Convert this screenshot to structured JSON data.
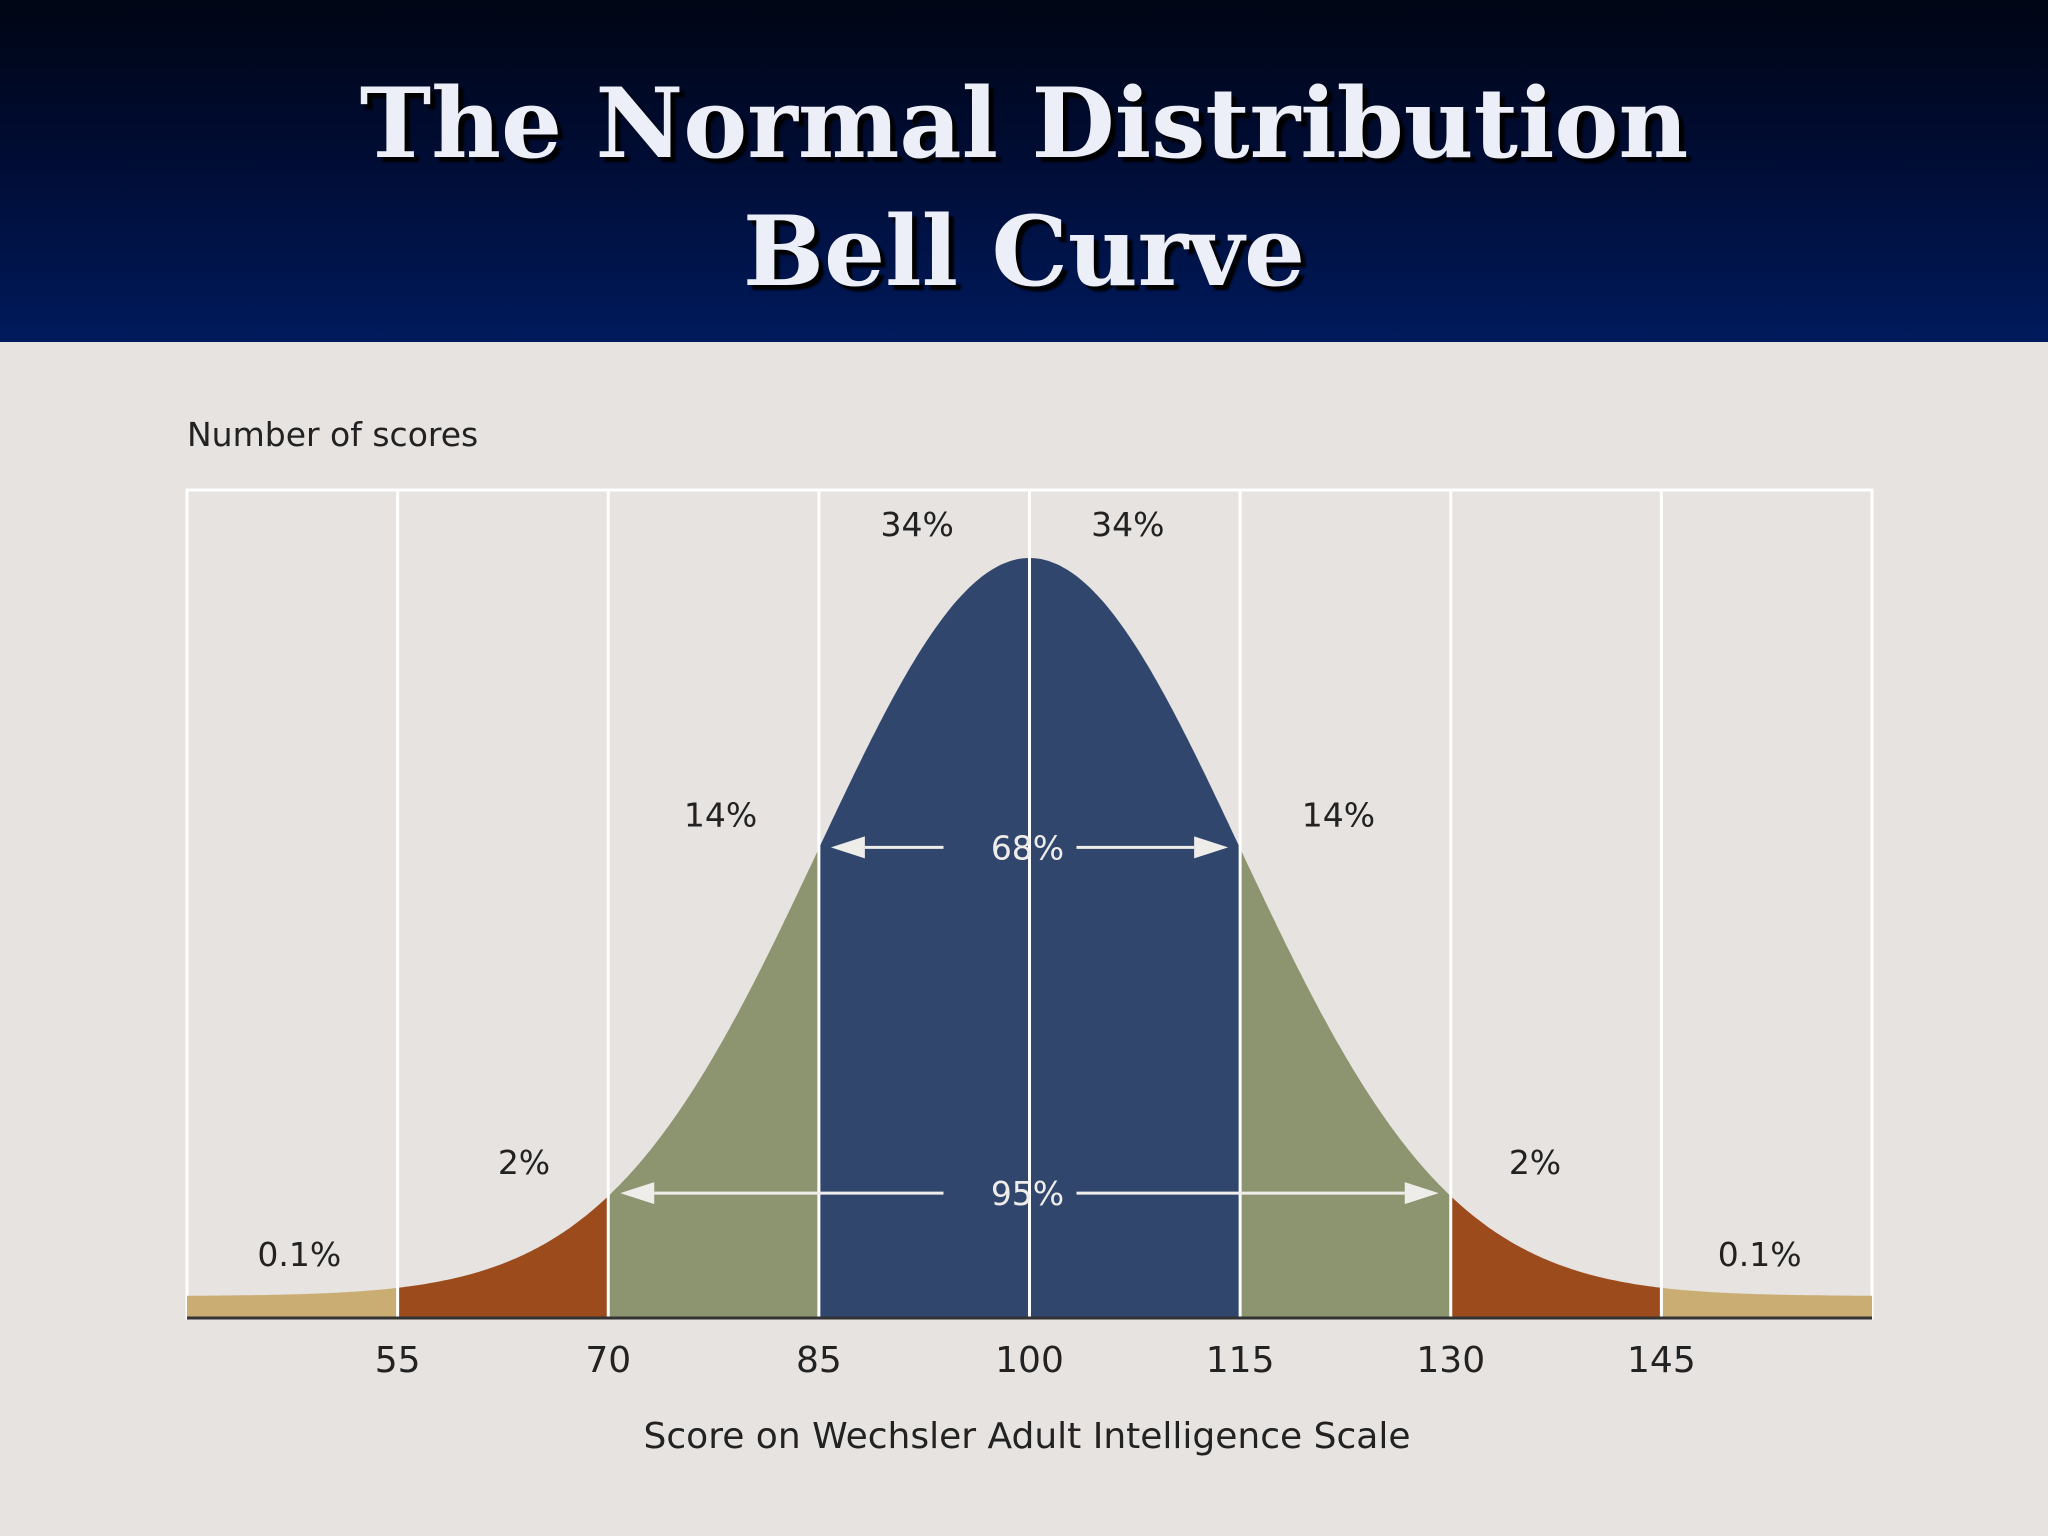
{
  "slide": {
    "title_line1": "The Normal Distribution",
    "title_line2": "Bell Curve"
  },
  "colors": {
    "header_dark": "#000514",
    "header_light": "#001a5c",
    "background": "#e7e3e0",
    "band_within_1sd": "#31466d",
    "band_1_2sd": "#8c9470",
    "band_2_3sd": "#9c4b1c",
    "band_beyond_3sd": "#c9ad72",
    "arrow": "#efedea"
  },
  "chart_data": {
    "type": "area",
    "ylabel": "Number of scores",
    "xlabel": "Score on Wechsler Adult Intelligence Scale",
    "mean": 100,
    "sd": 15,
    "xlim": [
      40,
      160
    ],
    "xticks": [
      55,
      70,
      85,
      100,
      115,
      130,
      145
    ],
    "grid": true,
    "bands": [
      {
        "from": 40,
        "to": 55,
        "label": "0.1%",
        "label_x": 48,
        "color": "#c9ad72"
      },
      {
        "from": 55,
        "to": 70,
        "label": "2%",
        "label_x": 64,
        "color": "#9c4b1c"
      },
      {
        "from": 70,
        "to": 85,
        "label": "14%",
        "label_x": 78,
        "color": "#8c9470"
      },
      {
        "from": 85,
        "to": 100,
        "label": "34%",
        "label_x": 92,
        "color": "#31466d"
      },
      {
        "from": 100,
        "to": 115,
        "label": "34%",
        "label_x": 107,
        "color": "#31466d"
      },
      {
        "from": 115,
        "to": 130,
        "label": "14%",
        "label_x": 122,
        "color": "#8c9470"
      },
      {
        "from": 130,
        "to": 145,
        "label": "2%",
        "label_x": 136,
        "color": "#9c4b1c"
      },
      {
        "from": 145,
        "to": 160,
        "label": "0.1%",
        "label_x": 152,
        "color": "#c9ad72"
      }
    ],
    "ranges": [
      {
        "from": 85,
        "to": 115,
        "label": "68%"
      },
      {
        "from": 70,
        "to": 130,
        "label": "95%"
      }
    ]
  }
}
